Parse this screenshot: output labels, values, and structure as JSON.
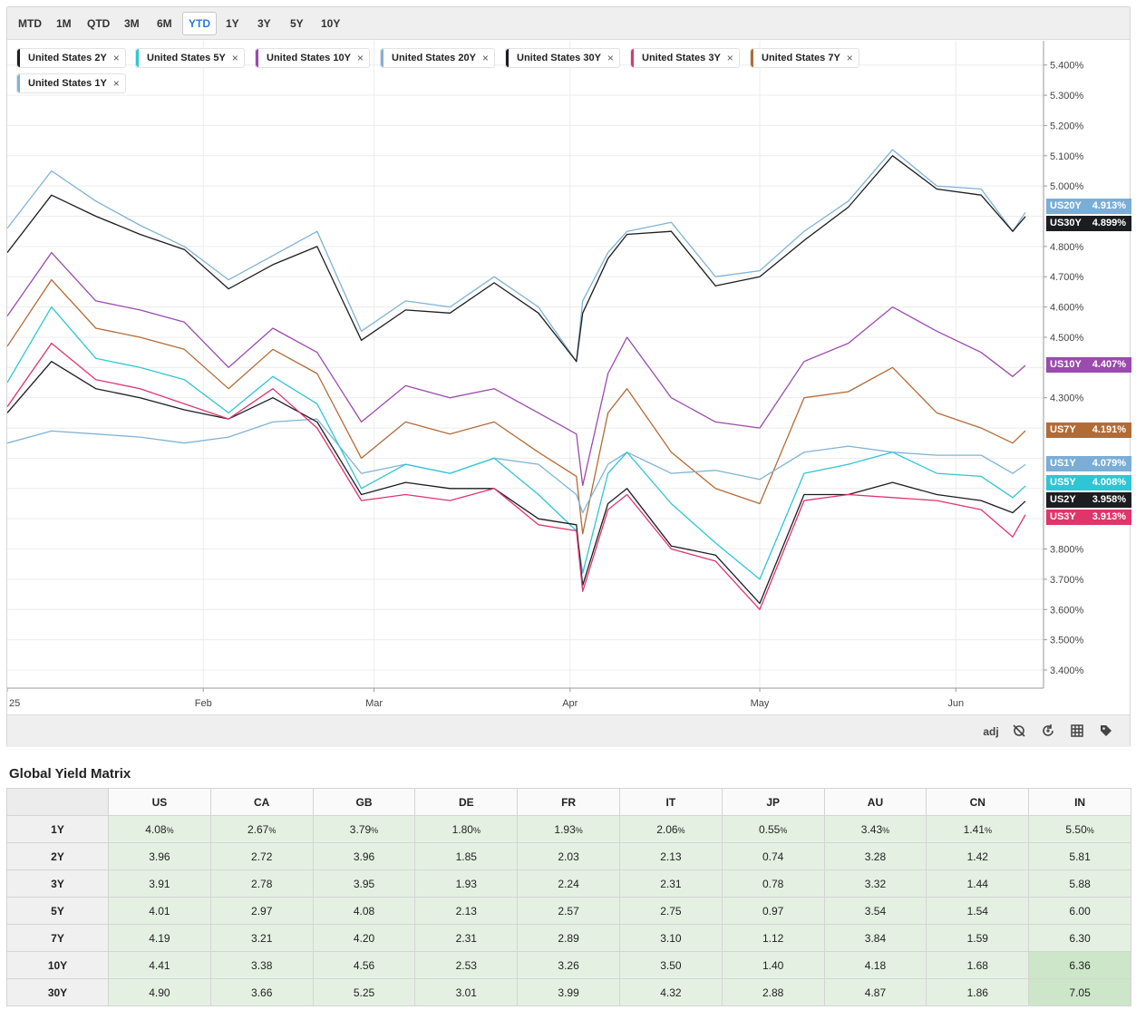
{
  "ranges": [
    "MTD",
    "1M",
    "QTD",
    "3M",
    "6M",
    "YTD",
    "1Y",
    "3Y",
    "5Y",
    "10Y"
  ],
  "active_range": "YTD",
  "legend": [
    {
      "label": "United States 2Y",
      "color": "#1b1d21"
    },
    {
      "label": "United States 5Y",
      "color": "#2ec6d6"
    },
    {
      "label": "United States 10Y",
      "color": "#9b4aad"
    },
    {
      "label": "United States 20Y",
      "color": "#7fb3d5"
    },
    {
      "label": "United States 30Y",
      "color": "#1b1d21"
    },
    {
      "label": "United States 3Y",
      "color": "#e0356b"
    },
    {
      "label": "United States 7Y",
      "color": "#b36b36"
    },
    {
      "label": "United States 1Y",
      "color": "#7fb3d5"
    }
  ],
  "value_tags": [
    {
      "code": "US20Y",
      "value": "4.913%",
      "color": "#7aaed6"
    },
    {
      "code": "US30Y",
      "value": "4.899%",
      "color": "#1b1d21"
    },
    {
      "code": "US10Y",
      "value": "4.407%",
      "color": "#9b4aad"
    },
    {
      "code": "US7Y",
      "value": "4.191%",
      "color": "#b36b36"
    },
    {
      "code": "US1Y",
      "value": "4.079%",
      "color": "#7aaed6"
    },
    {
      "code": "US5Y",
      "value": "4.008%",
      "color": "#2ec6d6"
    },
    {
      "code": "US2Y",
      "value": "3.958%",
      "color": "#1b1d21"
    },
    {
      "code": "US3Y",
      "value": "3.913%",
      "color": "#e0356b"
    }
  ],
  "toolbar": {
    "adj_label": "adj",
    "icons": [
      "crosshair-off-icon",
      "reset-zoom-icon",
      "grid-icon",
      "tag-icon"
    ]
  },
  "chart_data": {
    "type": "line",
    "title": "",
    "xlabel": "",
    "ylabel": "",
    "ylim": [
      3.34,
      5.48
    ],
    "yticks": [
      "3.400%",
      "3.500%",
      "3.600%",
      "3.700%",
      "3.800%",
      "4.300%",
      "4.500%",
      "4.600%",
      "4.700%",
      "4.800%",
      "5.000%",
      "5.100%",
      "5.200%",
      "5.300%",
      "5.400%"
    ],
    "xticks": [
      {
        "label": "25",
        "day": 0
      },
      {
        "label": "Feb",
        "day": 31
      },
      {
        "label": "Mar",
        "day": 58
      },
      {
        "label": "Apr",
        "day": 89
      },
      {
        "label": "May",
        "day": 119
      },
      {
        "label": "Jun",
        "day": 150
      }
    ],
    "x_days": [
      0,
      7,
      14,
      21,
      28,
      35,
      42,
      49,
      56,
      63,
      70,
      77,
      84,
      90,
      91,
      95,
      98,
      105,
      112,
      119,
      126,
      133,
      140,
      147,
      154,
      159,
      161
    ],
    "series": [
      {
        "name": "United States 20Y",
        "color": "#7fb3d5",
        "values": [
          4.86,
          5.05,
          4.95,
          4.87,
          4.8,
          4.69,
          4.77,
          4.85,
          4.52,
          4.62,
          4.6,
          4.7,
          4.6,
          4.42,
          4.62,
          4.78,
          4.85,
          4.88,
          4.7,
          4.72,
          4.85,
          4.95,
          5.12,
          5.0,
          4.99,
          4.85,
          4.913
        ]
      },
      {
        "name": "United States 30Y",
        "color": "#1b1d21",
        "values": [
          4.78,
          4.97,
          4.9,
          4.84,
          4.79,
          4.66,
          4.74,
          4.8,
          4.49,
          4.59,
          4.58,
          4.68,
          4.58,
          4.42,
          4.58,
          4.76,
          4.84,
          4.85,
          4.67,
          4.7,
          4.82,
          4.93,
          5.1,
          4.99,
          4.97,
          4.85,
          4.899
        ]
      },
      {
        "name": "United States 10Y",
        "color": "#9b4aad",
        "values": [
          4.57,
          4.78,
          4.62,
          4.59,
          4.55,
          4.4,
          4.53,
          4.45,
          4.22,
          4.34,
          4.3,
          4.33,
          4.25,
          4.18,
          4.01,
          4.38,
          4.5,
          4.3,
          4.22,
          4.2,
          4.42,
          4.48,
          4.6,
          4.52,
          4.45,
          4.37,
          4.407
        ]
      },
      {
        "name": "United States 7Y",
        "color": "#b36b36",
        "values": [
          4.47,
          4.69,
          4.53,
          4.5,
          4.46,
          4.33,
          4.46,
          4.38,
          4.1,
          4.22,
          4.18,
          4.22,
          4.12,
          4.04,
          3.85,
          4.25,
          4.33,
          4.12,
          4.0,
          3.95,
          4.3,
          4.32,
          4.4,
          4.25,
          4.2,
          4.15,
          4.191
        ]
      },
      {
        "name": "United States 1Y",
        "color": "#7fb3d5",
        "values": [
          4.15,
          4.19,
          4.18,
          4.17,
          4.15,
          4.17,
          4.22,
          4.23,
          4.05,
          4.08,
          4.05,
          4.1,
          4.08,
          3.98,
          3.92,
          4.08,
          4.12,
          4.05,
          4.06,
          4.03,
          4.12,
          4.14,
          4.12,
          4.11,
          4.11,
          4.05,
          4.079
        ]
      },
      {
        "name": "United States 5Y",
        "color": "#2ec6d6",
        "values": [
          4.35,
          4.6,
          4.43,
          4.4,
          4.36,
          4.25,
          4.37,
          4.28,
          4.0,
          4.08,
          4.05,
          4.1,
          3.98,
          3.86,
          3.72,
          4.05,
          4.12,
          3.95,
          3.82,
          3.7,
          4.05,
          4.08,
          4.12,
          4.05,
          4.04,
          3.97,
          4.008
        ]
      },
      {
        "name": "United States 2Y",
        "color": "#1b1d21",
        "values": [
          4.25,
          4.42,
          4.33,
          4.3,
          4.26,
          4.23,
          4.3,
          4.22,
          3.98,
          4.02,
          4.0,
          4.0,
          3.9,
          3.88,
          3.68,
          3.95,
          4.0,
          3.81,
          3.78,
          3.62,
          3.98,
          3.98,
          4.02,
          3.98,
          3.96,
          3.92,
          3.958
        ]
      },
      {
        "name": "United States 3Y",
        "color": "#e0356b",
        "values": [
          4.27,
          4.48,
          4.36,
          4.33,
          4.28,
          4.23,
          4.33,
          4.2,
          3.96,
          3.98,
          3.96,
          4.0,
          3.88,
          3.86,
          3.66,
          3.93,
          3.98,
          3.8,
          3.76,
          3.6,
          3.96,
          3.98,
          3.97,
          3.96,
          3.93,
          3.84,
          3.913
        ]
      }
    ]
  },
  "matrix": {
    "title": "Global Yield Matrix",
    "columns": [
      "US",
      "CA",
      "GB",
      "DE",
      "FR",
      "IT",
      "JP",
      "AU",
      "CN",
      "IN"
    ],
    "rows": [
      {
        "label": "1Y",
        "values": [
          "4.08",
          "2.67",
          "3.79",
          "1.80",
          "1.93",
          "2.06",
          "0.55",
          "3.43",
          "1.41",
          "5.50"
        ],
        "suffix": "%"
      },
      {
        "label": "2Y",
        "values": [
          "3.96",
          "2.72",
          "3.96",
          "1.85",
          "2.03",
          "2.13",
          "0.74",
          "3.28",
          "1.42",
          "5.81"
        ]
      },
      {
        "label": "3Y",
        "values": [
          "3.91",
          "2.78",
          "3.95",
          "1.93",
          "2.24",
          "2.31",
          "0.78",
          "3.32",
          "1.44",
          "5.88"
        ]
      },
      {
        "label": "5Y",
        "values": [
          "4.01",
          "2.97",
          "4.08",
          "2.13",
          "2.57",
          "2.75",
          "0.97",
          "3.54",
          "1.54",
          "6.00"
        ]
      },
      {
        "label": "7Y",
        "values": [
          "4.19",
          "3.21",
          "4.20",
          "2.31",
          "2.89",
          "3.10",
          "1.12",
          "3.84",
          "1.59",
          "6.30"
        ]
      },
      {
        "label": "10Y",
        "values": [
          "4.41",
          "3.38",
          "4.56",
          "2.53",
          "3.26",
          "3.50",
          "1.40",
          "4.18",
          "1.68",
          "6.36"
        ]
      },
      {
        "label": "30Y",
        "values": [
          "4.90",
          "3.66",
          "5.25",
          "3.01",
          "3.99",
          "4.32",
          "2.88",
          "4.87",
          "1.86",
          "7.05"
        ]
      }
    ]
  }
}
